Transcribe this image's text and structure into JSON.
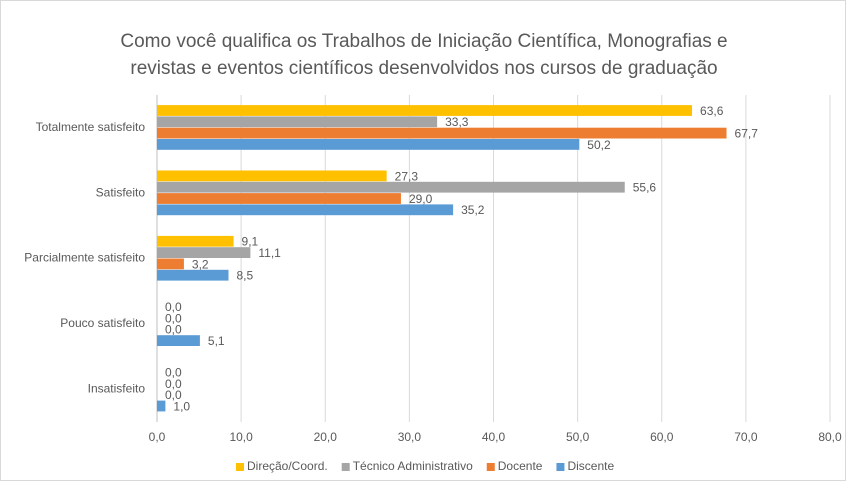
{
  "chart_data": {
    "type": "hbar",
    "title": "Como você qualifica os Trabalhos de Iniciação Científica, Monografias e revistas e eventos científicos desenvolvidos nos cursos de graduação",
    "categories": [
      "Totalmente satisfeito",
      "Satisfeito",
      "Parcialmente satisfeito",
      "Pouco satisfeito",
      "Insatisfeito"
    ],
    "series": [
      {
        "name": "Direção/Coord.",
        "color": "#ffc000",
        "values": [
          63.6,
          27.3,
          9.1,
          0,
          0
        ],
        "value_labels": [
          "63,6",
          "27,3",
          "9,1",
          "0,0",
          "0,0"
        ]
      },
      {
        "name": "Técnico Administrativo",
        "color": "#a5a5a5",
        "values": [
          33.3,
          55.6,
          11.1,
          0,
          0
        ],
        "value_labels": [
          "33,3",
          "55,6",
          "11,1",
          "0,0",
          "0,0"
        ]
      },
      {
        "name": "Docente",
        "color": "#ed7d31",
        "values": [
          67.7,
          29.0,
          3.2,
          0,
          0
        ],
        "value_labels": [
          "67,7",
          "29,0",
          "3,2",
          "0,0",
          "0,0"
        ]
      },
      {
        "name": "Discente",
        "color": "#5b9bd5",
        "values": [
          50.2,
          35.2,
          8.5,
          5.1,
          1.0
        ],
        "value_labels": [
          "50,2",
          "35,2",
          "8,5",
          "5,1",
          "1,0"
        ]
      }
    ],
    "xlim": [
      0,
      80
    ],
    "xticks": [
      {
        "value": 0,
        "label": "0,0"
      },
      {
        "value": 10,
        "label": "10,0"
      },
      {
        "value": 20,
        "label": "20,0"
      },
      {
        "value": 30,
        "label": "30,0"
      },
      {
        "value": 40,
        "label": "40,0"
      },
      {
        "value": 50,
        "label": "50,0"
      },
      {
        "value": 60,
        "label": "60,0"
      },
      {
        "value": 70,
        "label": "70,0"
      },
      {
        "value": 80,
        "label": "80,0"
      }
    ],
    "grid": true,
    "legend": "bottom"
  }
}
